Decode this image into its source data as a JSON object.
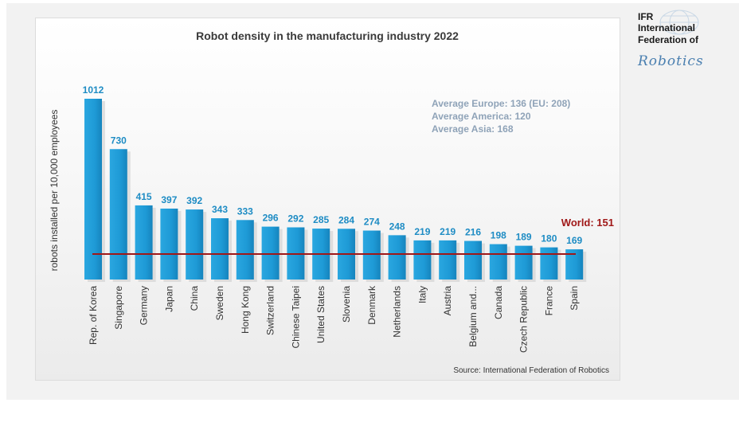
{
  "chart_data": {
    "type": "bar",
    "title": "Robot density in the manufacturing industry 2022",
    "ylabel": "robots installed per 10,000 employees",
    "xlabel": "",
    "categories": [
      "Rep. of Korea",
      "Singapore",
      "Germany",
      "Japan",
      "China",
      "Sweden",
      "Hong Kong",
      "Switzerland",
      "Chinese Taipei",
      "United States",
      "Slovenia",
      "Denmark",
      "Netherlands",
      "Italy",
      "Austria",
      "Belgium and...",
      "Canada",
      "Czech Republic",
      "France",
      "Spain"
    ],
    "values": [
      1012,
      730,
      415,
      397,
      392,
      343,
      333,
      296,
      292,
      285,
      284,
      274,
      248,
      219,
      219,
      216,
      198,
      189,
      180,
      169
    ],
    "ylim": [
      0,
      1050
    ],
    "reference_line": {
      "label": "World: 151",
      "value": 151,
      "color": "#a01818"
    },
    "bar_color": "#1e9ad6",
    "label_color": "#1e8cc4",
    "annotations": [
      "Average Europe: 136   (EU: 208)",
      "Average America: 120",
      "Average Asia: 168"
    ],
    "annotation_color": "#8fa3b8",
    "source": "Source: International Federation of Robotics",
    "grid": false,
    "legend": "none"
  },
  "logo": {
    "line1": "IFR",
    "line2": "International",
    "line3": "Federation of",
    "script": "Robotics"
  }
}
